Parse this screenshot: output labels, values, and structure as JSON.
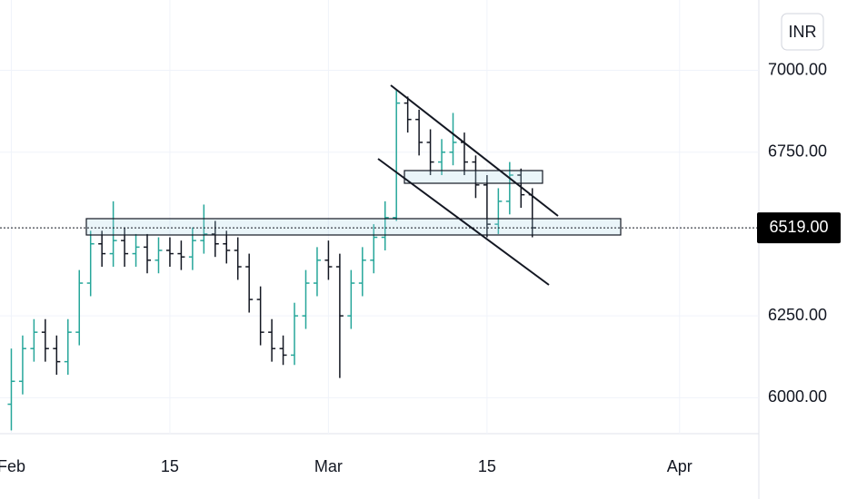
{
  "chart_data": {
    "type": "ohlc",
    "currency": "INR",
    "x": [
      "02-01",
      "02-02",
      "02-03",
      "02-04",
      "02-05",
      "02-06",
      "02-07",
      "02-08",
      "02-09",
      "02-10",
      "02-11",
      "02-12",
      "02-13",
      "02-14",
      "02-15",
      "02-16",
      "02-17",
      "02-18",
      "02-19",
      "02-20",
      "02-21",
      "02-22",
      "02-23",
      "02-24",
      "02-25",
      "02-26",
      "02-27",
      "02-28",
      "03-01",
      "03-02",
      "03-03",
      "03-04",
      "03-05",
      "03-06",
      "03-07",
      "03-08",
      "03-09",
      "03-10",
      "03-11",
      "03-12",
      "03-13",
      "03-14",
      "03-15",
      "03-16",
      "03-17",
      "03-18",
      "03-19"
    ],
    "open": [
      5980,
      6050,
      6150,
      6200,
      6150,
      6110,
      6200,
      6350,
      6470,
      6440,
      6480,
      6440,
      6460,
      6420,
      6450,
      6440,
      6430,
      6480,
      6500,
      6470,
      6450,
      6400,
      6300,
      6200,
      6150,
      6130,
      6250,
      6350,
      6420,
      6400,
      6250,
      6350,
      6420,
      6490,
      6550,
      6900,
      6850,
      6780,
      6720,
      6750,
      6780,
      6720,
      6650,
      6530,
      6600,
      6680,
      6620
    ],
    "high": [
      6150,
      6190,
      6240,
      6240,
      6190,
      6240,
      6390,
      6510,
      6510,
      6600,
      6520,
      6500,
      6500,
      6490,
      6490,
      6480,
      6520,
      6590,
      6540,
      6510,
      6490,
      6440,
      6340,
      6240,
      6190,
      6290,
      6390,
      6460,
      6480,
      6440,
      6390,
      6460,
      6530,
      6600,
      6940,
      6920,
      6880,
      6820,
      6790,
      6870,
      6810,
      6740,
      6680,
      6640,
      6720,
      6700,
      6640
    ],
    "low": [
      5900,
      6010,
      6110,
      6110,
      6070,
      6070,
      6160,
      6310,
      6400,
      6400,
      6400,
      6400,
      6380,
      6380,
      6400,
      6390,
      6390,
      6440,
      6430,
      6410,
      6360,
      6260,
      6160,
      6110,
      6100,
      6100,
      6210,
      6310,
      6360,
      6060,
      6210,
      6310,
      6380,
      6450,
      6540,
      6810,
      6740,
      6680,
      6680,
      6710,
      6680,
      6610,
      6490,
      6500,
      6560,
      6580,
      6490
    ],
    "close": [
      6050,
      6150,
      6200,
      6150,
      6110,
      6200,
      6350,
      6470,
      6440,
      6480,
      6440,
      6460,
      6420,
      6450,
      6440,
      6430,
      6480,
      6500,
      6470,
      6450,
      6400,
      6300,
      6200,
      6150,
      6130,
      6250,
      6350,
      6420,
      6400,
      6250,
      6350,
      6420,
      6490,
      6550,
      6900,
      6850,
      6780,
      6720,
      6750,
      6780,
      6720,
      6650,
      6530,
      6600,
      6680,
      6620,
      6519
    ],
    "up_color": "#26a69a",
    "down_color": "#131722",
    "last_price": {
      "value": 6519,
      "label": "6519.00"
    },
    "xlim": [
      "01-31",
      "04-08"
    ],
    "xticks": [
      {
        "value": "02-01",
        "label": "Feb"
      },
      {
        "value": "02-15",
        "label": "15"
      },
      {
        "value": "03-01",
        "label": "Mar"
      },
      {
        "value": "03-15",
        "label": "15"
      },
      {
        "value": "04-01",
        "label": "Apr"
      }
    ],
    "ylim": [
      5890,
      7215
    ],
    "yticks": [
      {
        "value": 6000,
        "label": "6000.00"
      },
      {
        "value": 6250,
        "label": "6250.00"
      },
      {
        "value": 6750,
        "label": "6750.00"
      },
      {
        "value": 7000,
        "label": "7000.00"
      }
    ],
    "grid": true
  }
}
